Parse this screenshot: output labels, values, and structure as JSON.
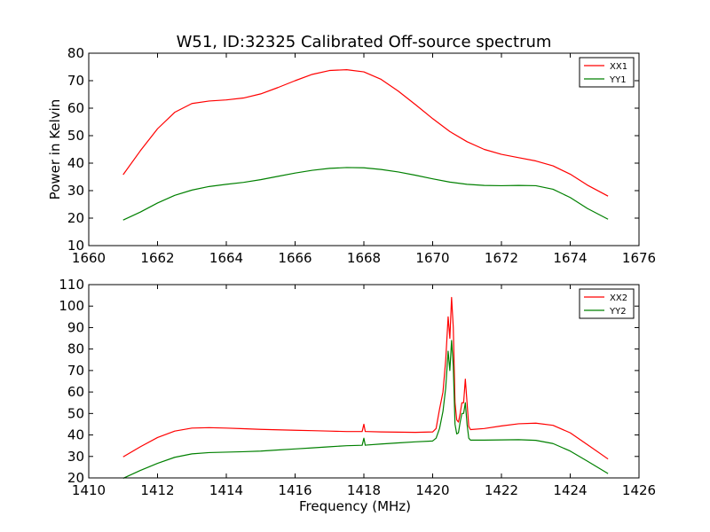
{
  "figure": {
    "title": "W51, ID:32325 Calibrated Off-source spectrum"
  },
  "chart_data": [
    {
      "type": "line",
      "title": "W51, ID:32325 Calibrated Off-source spectrum",
      "xlabel": "",
      "ylabel": "Power in Kelvin",
      "xlim": [
        1660,
        1676
      ],
      "ylim": [
        10,
        80
      ],
      "xticks": [
        1660,
        1662,
        1664,
        1666,
        1668,
        1670,
        1672,
        1674,
        1676
      ],
      "yticks": [
        10,
        20,
        30,
        40,
        50,
        60,
        70,
        80
      ],
      "grid": false,
      "legend": "top-right",
      "series": [
        {
          "name": "XX1",
          "color": "#ff0000",
          "x": [
            1661.0,
            1661.5,
            1662.0,
            1662.5,
            1663.0,
            1663.5,
            1664.0,
            1664.5,
            1665.0,
            1665.5,
            1666.0,
            1666.5,
            1667.0,
            1667.5,
            1668.0,
            1668.5,
            1669.0,
            1669.5,
            1670.0,
            1670.5,
            1671.0,
            1671.5,
            1672.0,
            1672.5,
            1673.0,
            1673.5,
            1674.0,
            1674.5,
            1675.1
          ],
          "y": [
            35.8,
            44.5,
            52.5,
            58.5,
            61.7,
            62.6,
            63.0,
            63.7,
            65.2,
            67.5,
            70.0,
            72.3,
            73.7,
            74.0,
            73.2,
            70.5,
            66.2,
            61.3,
            56.2,
            51.5,
            47.8,
            45.0,
            43.2,
            42.0,
            40.8,
            39.0,
            36.0,
            32.0,
            28.0
          ]
        },
        {
          "name": "YY1",
          "color": "#008000",
          "x": [
            1661.0,
            1661.5,
            1662.0,
            1662.5,
            1663.0,
            1663.5,
            1664.0,
            1664.5,
            1665.0,
            1665.5,
            1666.0,
            1666.5,
            1667.0,
            1667.5,
            1668.0,
            1668.5,
            1669.0,
            1669.5,
            1670.0,
            1670.5,
            1671.0,
            1671.5,
            1672.0,
            1672.5,
            1673.0,
            1673.5,
            1674.0,
            1674.5,
            1675.1
          ],
          "y": [
            19.3,
            22.2,
            25.5,
            28.3,
            30.2,
            31.5,
            32.3,
            33.0,
            34.0,
            35.2,
            36.4,
            37.4,
            38.1,
            38.4,
            38.3,
            37.7,
            36.8,
            35.6,
            34.3,
            33.1,
            32.3,
            31.9,
            31.8,
            31.9,
            31.8,
            30.5,
            27.5,
            23.5,
            19.6
          ]
        }
      ]
    },
    {
      "type": "line",
      "title": "",
      "xlabel": "Frequency (MHz)",
      "ylabel": "",
      "xlim": [
        1410,
        1426
      ],
      "ylim": [
        20,
        110
      ],
      "xticks": [
        1410,
        1412,
        1414,
        1416,
        1418,
        1420,
        1422,
        1424,
        1426
      ],
      "yticks": [
        20,
        30,
        40,
        50,
        60,
        70,
        80,
        90,
        100,
        110
      ],
      "grid": false,
      "legend": "top-right",
      "series": [
        {
          "name": "XX2",
          "color": "#ff0000",
          "x": [
            1411.0,
            1411.5,
            1412.0,
            1412.5,
            1413.0,
            1413.5,
            1414.0,
            1414.5,
            1415.0,
            1415.5,
            1416.0,
            1416.5,
            1417.0,
            1417.5,
            1417.95,
            1418.0,
            1418.04,
            1418.08,
            1418.5,
            1419.0,
            1419.5,
            1420.0,
            1420.1,
            1420.2,
            1420.3,
            1420.38,
            1420.45,
            1420.5,
            1420.55,
            1420.6,
            1420.65,
            1420.7,
            1420.75,
            1420.8,
            1420.85,
            1420.9,
            1420.95,
            1421.0,
            1421.05,
            1421.1,
            1421.5,
            1422.0,
            1422.5,
            1423.0,
            1423.5,
            1424.0,
            1424.5,
            1425.1
          ],
          "y": [
            29.8,
            34.5,
            38.8,
            41.8,
            43.2,
            43.4,
            43.2,
            42.9,
            42.6,
            42.4,
            42.2,
            42.0,
            41.8,
            41.6,
            41.6,
            45.0,
            41.6,
            41.6,
            41.4,
            41.3,
            41.2,
            41.4,
            43.0,
            52.0,
            60.0,
            75.0,
            95.0,
            85.0,
            104.0,
            90.0,
            55.0,
            47.0,
            46.0,
            50.0,
            55.0,
            55.0,
            66.0,
            55.0,
            44.0,
            42.5,
            43.0,
            44.2,
            45.2,
            45.5,
            44.5,
            41.0,
            35.5,
            28.8
          ]
        },
        {
          "name": "YY2",
          "color": "#008000",
          "x": [
            1411.0,
            1411.5,
            1412.0,
            1412.5,
            1413.0,
            1413.5,
            1414.0,
            1414.5,
            1415.0,
            1415.5,
            1416.0,
            1416.5,
            1417.0,
            1417.5,
            1417.95,
            1418.0,
            1418.04,
            1418.08,
            1418.5,
            1419.0,
            1419.5,
            1420.0,
            1420.1,
            1420.2,
            1420.3,
            1420.38,
            1420.45,
            1420.5,
            1420.55,
            1420.6,
            1420.65,
            1420.7,
            1420.75,
            1420.8,
            1420.85,
            1420.9,
            1420.95,
            1421.0,
            1421.05,
            1421.1,
            1421.5,
            1422.0,
            1422.5,
            1423.0,
            1423.5,
            1424.0,
            1424.5,
            1425.1
          ],
          "y": [
            19.8,
            23.5,
            26.8,
            29.6,
            31.2,
            31.8,
            32.0,
            32.2,
            32.5,
            33.0,
            33.5,
            34.0,
            34.5,
            35.0,
            35.2,
            38.5,
            35.2,
            35.3,
            35.8,
            36.3,
            36.8,
            37.2,
            38.5,
            43.0,
            51.0,
            62.0,
            79.0,
            70.0,
            84.0,
            72.0,
            45.0,
            40.5,
            41.0,
            46.0,
            50.0,
            50.0,
            55.0,
            45.0,
            38.5,
            37.6,
            37.6,
            37.7,
            37.8,
            37.5,
            36.0,
            32.5,
            27.8,
            22.0
          ]
        }
      ]
    }
  ]
}
